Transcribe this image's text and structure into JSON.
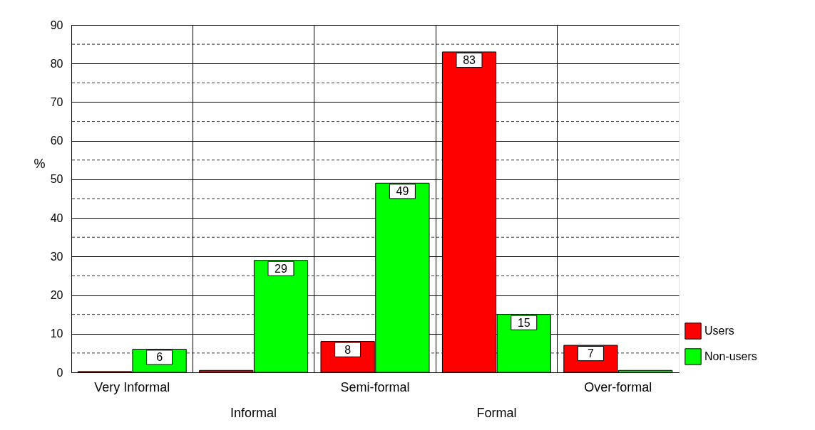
{
  "chart_data": {
    "type": "bar",
    "ylabel": "%",
    "categories": [
      "Very Informal",
      "Informal",
      "Semi-formal",
      "Formal",
      "Over-formal"
    ],
    "series": [
      {
        "name": "Users",
        "color": "#ff0000",
        "values": [
          0.2,
          0.5,
          8,
          83,
          7
        ],
        "value_labels": [
          null,
          null,
          "8",
          "83",
          "7"
        ]
      },
      {
        "name": "Non-users",
        "color": "#00ff00",
        "values": [
          6,
          29,
          49,
          15,
          0.5
        ],
        "value_labels": [
          "6",
          "29",
          "49",
          "15",
          null
        ]
      }
    ],
    "ylim": [
      0,
      90
    ],
    "yticks": [
      0,
      {
        "value": 5,
        "label": null
      },
      10,
      {
        "value": 15,
        "label": null
      },
      20,
      {
        "value": 25,
        "label": null
      },
      30,
      {
        "value": 35,
        "label": null
      },
      40,
      {
        "value": 45,
        "label": null
      },
      50,
      {
        "value": 55,
        "label": null
      },
      60,
      {
        "value": 65,
        "label": null
      },
      70,
      {
        "value": 75,
        "label": null
      },
      80,
      {
        "value": 85,
        "label": null
      },
      90
    ],
    "grid": true,
    "legend": "bottom right"
  }
}
